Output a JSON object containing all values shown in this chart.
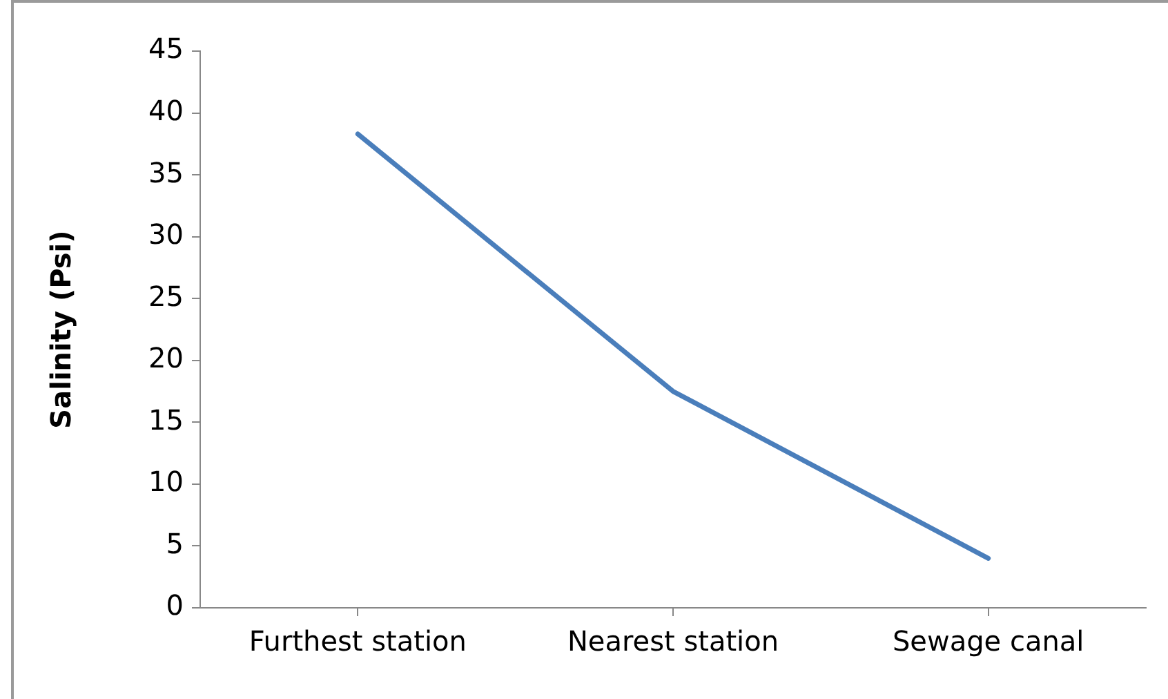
{
  "chart_data": {
    "type": "line",
    "ylabel": "Salinity (Psi)",
    "categories": [
      "Furthest station",
      "Nearest station",
      "Sewage canal"
    ],
    "series": [
      {
        "color": "#4a7ebb",
        "values": [
          38.3,
          17.5,
          4.0
        ]
      }
    ],
    "ylim": [
      0,
      45
    ],
    "yticks": [
      0,
      5,
      10,
      15,
      20,
      25,
      30,
      35,
      40,
      45
    ],
    "grid": false,
    "legend": false,
    "marker": "none",
    "line_style": "solid"
  }
}
